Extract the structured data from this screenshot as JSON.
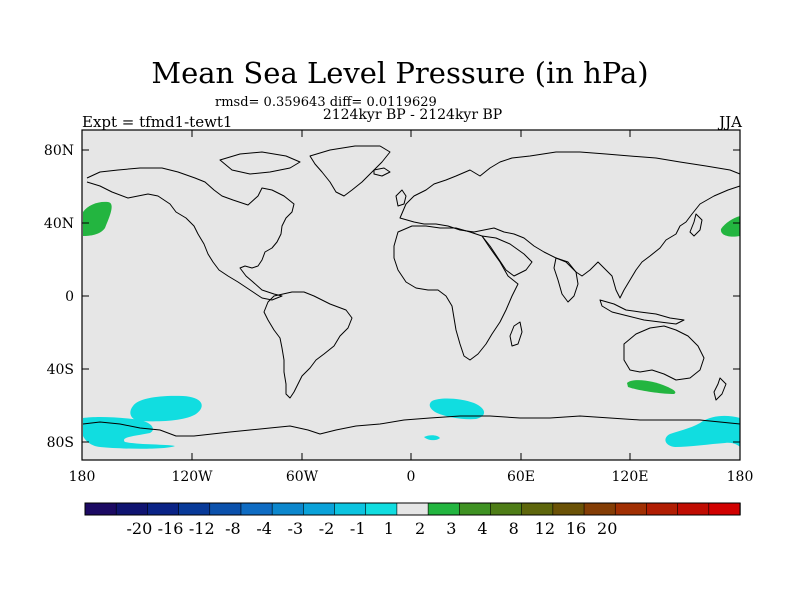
{
  "title": "Mean Sea Level Pressure (in hPa)",
  "stats": "rmsd= 0.359643 diff= 0.0119629",
  "period": "2124kyr BP - 2124kyr BP",
  "experiment": "Expt = tfmd1-tewt1",
  "season": "JJA",
  "lat_ticks": [
    "80N",
    "40N",
    "0",
    "40S",
    "80S"
  ],
  "lon_ticks": [
    "180",
    "120W",
    "60W",
    "0",
    "60E",
    "120E",
    "180"
  ],
  "map_extent": {
    "lon": [
      -180,
      180
    ],
    "lat": [
      -90,
      90
    ]
  },
  "colors": {
    "ocean_land_bg": "#e6e6e6",
    "coastline": "#000000",
    "anomaly_positive": "#23b540",
    "anomaly_negative": "#11dde0"
  },
  "colorbar": {
    "colors": [
      "#1c0a63",
      "#101471",
      "#0a2386",
      "#083a99",
      "#0b51ac",
      "#0f6cc3",
      "#0c87cd",
      "#0aa2d9",
      "#0cc4e0",
      "#11dde0",
      "#e6e6e6",
      "#23b540",
      "#3f9223",
      "#4e7d17",
      "#5e660c",
      "#6b5206",
      "#843d05",
      "#a12f03",
      "#b11d03",
      "#c00c02",
      "#d10000"
    ],
    "labels": [
      "-20",
      "-16",
      "-12",
      "-8",
      "-4",
      "-3",
      "-2",
      "-1",
      "1",
      "2",
      "3",
      "4",
      "8",
      "12",
      "16",
      "20"
    ]
  }
}
